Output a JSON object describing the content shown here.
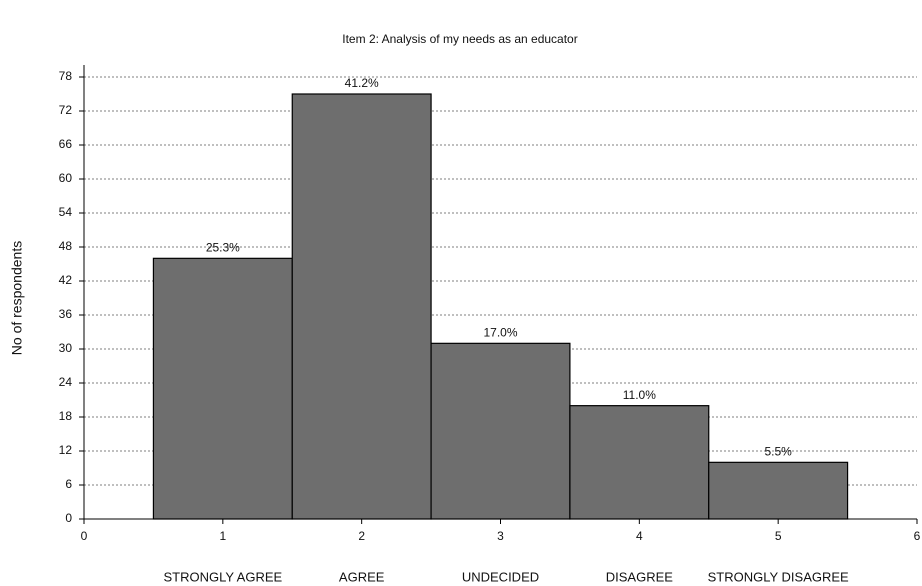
{
  "chart_data": {
    "type": "bar",
    "title": "Item 2: Analysis of my needs as an educator",
    "y_label": "No of respondents",
    "x": [
      1,
      2,
      3,
      4,
      5
    ],
    "categories": [
      "STRONGLY AGREE",
      "AGREE",
      "UNDECIDED",
      "DISAGREE",
      "STRONGLY DISAGREE"
    ],
    "values": [
      46,
      75,
      31,
      20,
      10
    ],
    "value_labels": [
      "25.3%",
      "41.2%",
      "17.0%",
      "11.0%",
      "5.5%"
    ],
    "color": "#6e6e6e",
    "xlim": [
      0,
      6
    ],
    "xticks": [
      0,
      1,
      2,
      3,
      4,
      5,
      6
    ],
    "ylim": [
      0,
      78
    ],
    "yticks": [
      0,
      6,
      12,
      18,
      24,
      30,
      36,
      42,
      48,
      54,
      60,
      66,
      72,
      78
    ],
    "grid": true
  }
}
